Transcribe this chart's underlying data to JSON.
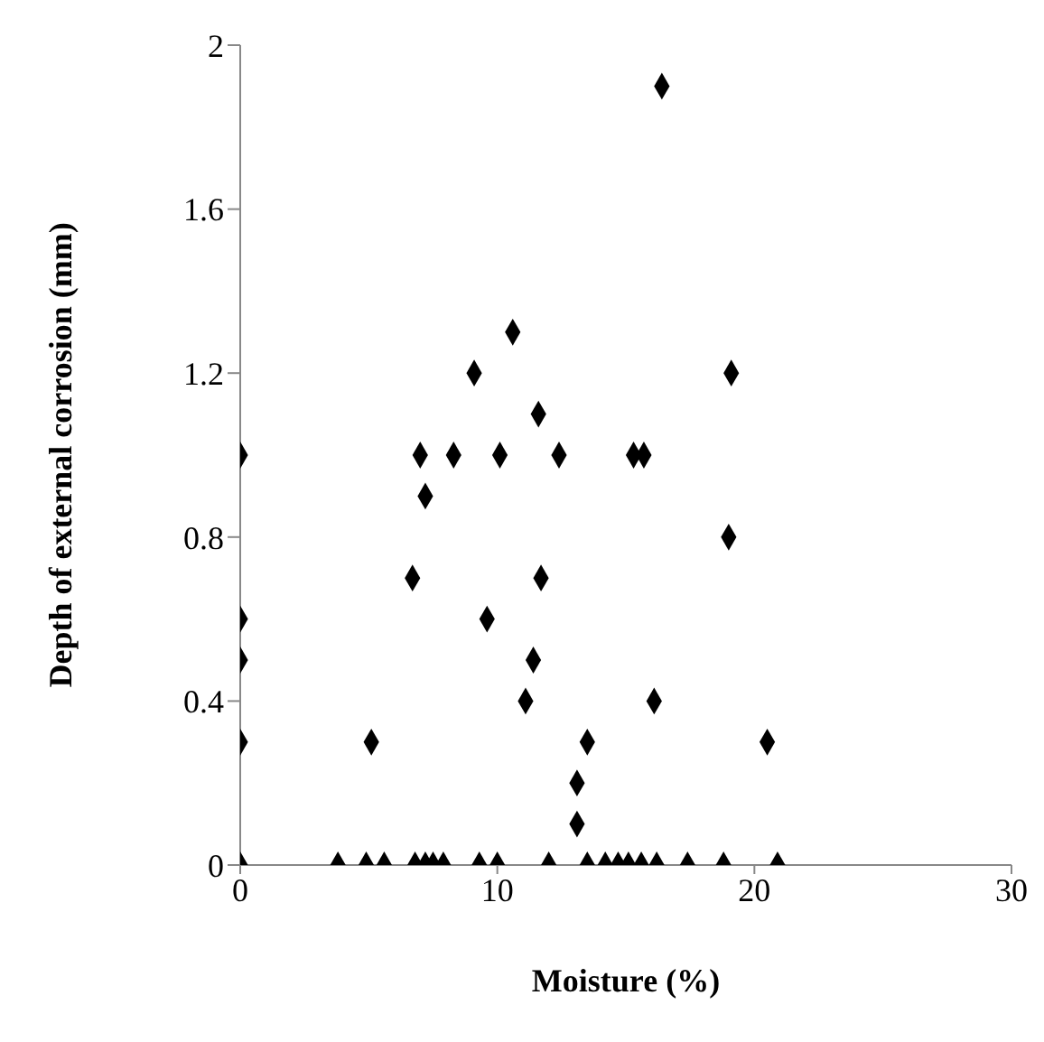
{
  "chart_data": {
    "type": "scatter",
    "xlabel": "Moisture (%)",
    "ylabel": "Depth of external corrosion (mm)",
    "x": [
      0,
      0,
      0,
      0,
      0,
      3.8,
      4.9,
      5.6,
      6.8,
      7.2,
      7.5,
      7.9,
      9.3,
      10.0,
      12.0,
      13.5,
      14.2,
      14.7,
      15.1,
      15.6,
      16.2,
      17.4,
      18.8,
      20.9,
      5.1,
      13.5,
      13.1,
      13.1,
      20.5,
      11.1,
      16.1,
      11.4,
      9.6,
      6.7,
      11.7,
      19.0,
      7.2,
      7.0,
      8.3,
      10.1,
      12.4,
      15.3,
      15.7,
      11.6,
      9.1,
      19.1,
      10.6,
      16.4
    ],
    "series": [
      {
        "color": "#000000",
        "values": [
          1.0,
          0.6,
          0.5,
          0.3,
          0,
          0,
          0,
          0,
          0,
          0,
          0,
          0,
          0,
          0,
          0,
          0,
          0,
          0,
          0,
          0,
          0,
          0,
          0,
          0,
          0.3,
          0.3,
          0.2,
          0.1,
          0.3,
          0.4,
          0.4,
          0.5,
          0.6,
          0.7,
          0.7,
          0.8,
          0.9,
          1.0,
          1.0,
          1.0,
          1.0,
          1.0,
          1.0,
          1.1,
          1.2,
          1.2,
          1.3,
          1.9
        ]
      }
    ],
    "xlim": [
      0,
      30
    ],
    "xticks": [
      0,
      10,
      20,
      30
    ],
    "ylim": [
      0,
      2
    ],
    "yticks": [
      0,
      0.4,
      0.8,
      1.2,
      1.6,
      2
    ],
    "marker": "diamond",
    "grid": false,
    "legend": false
  }
}
